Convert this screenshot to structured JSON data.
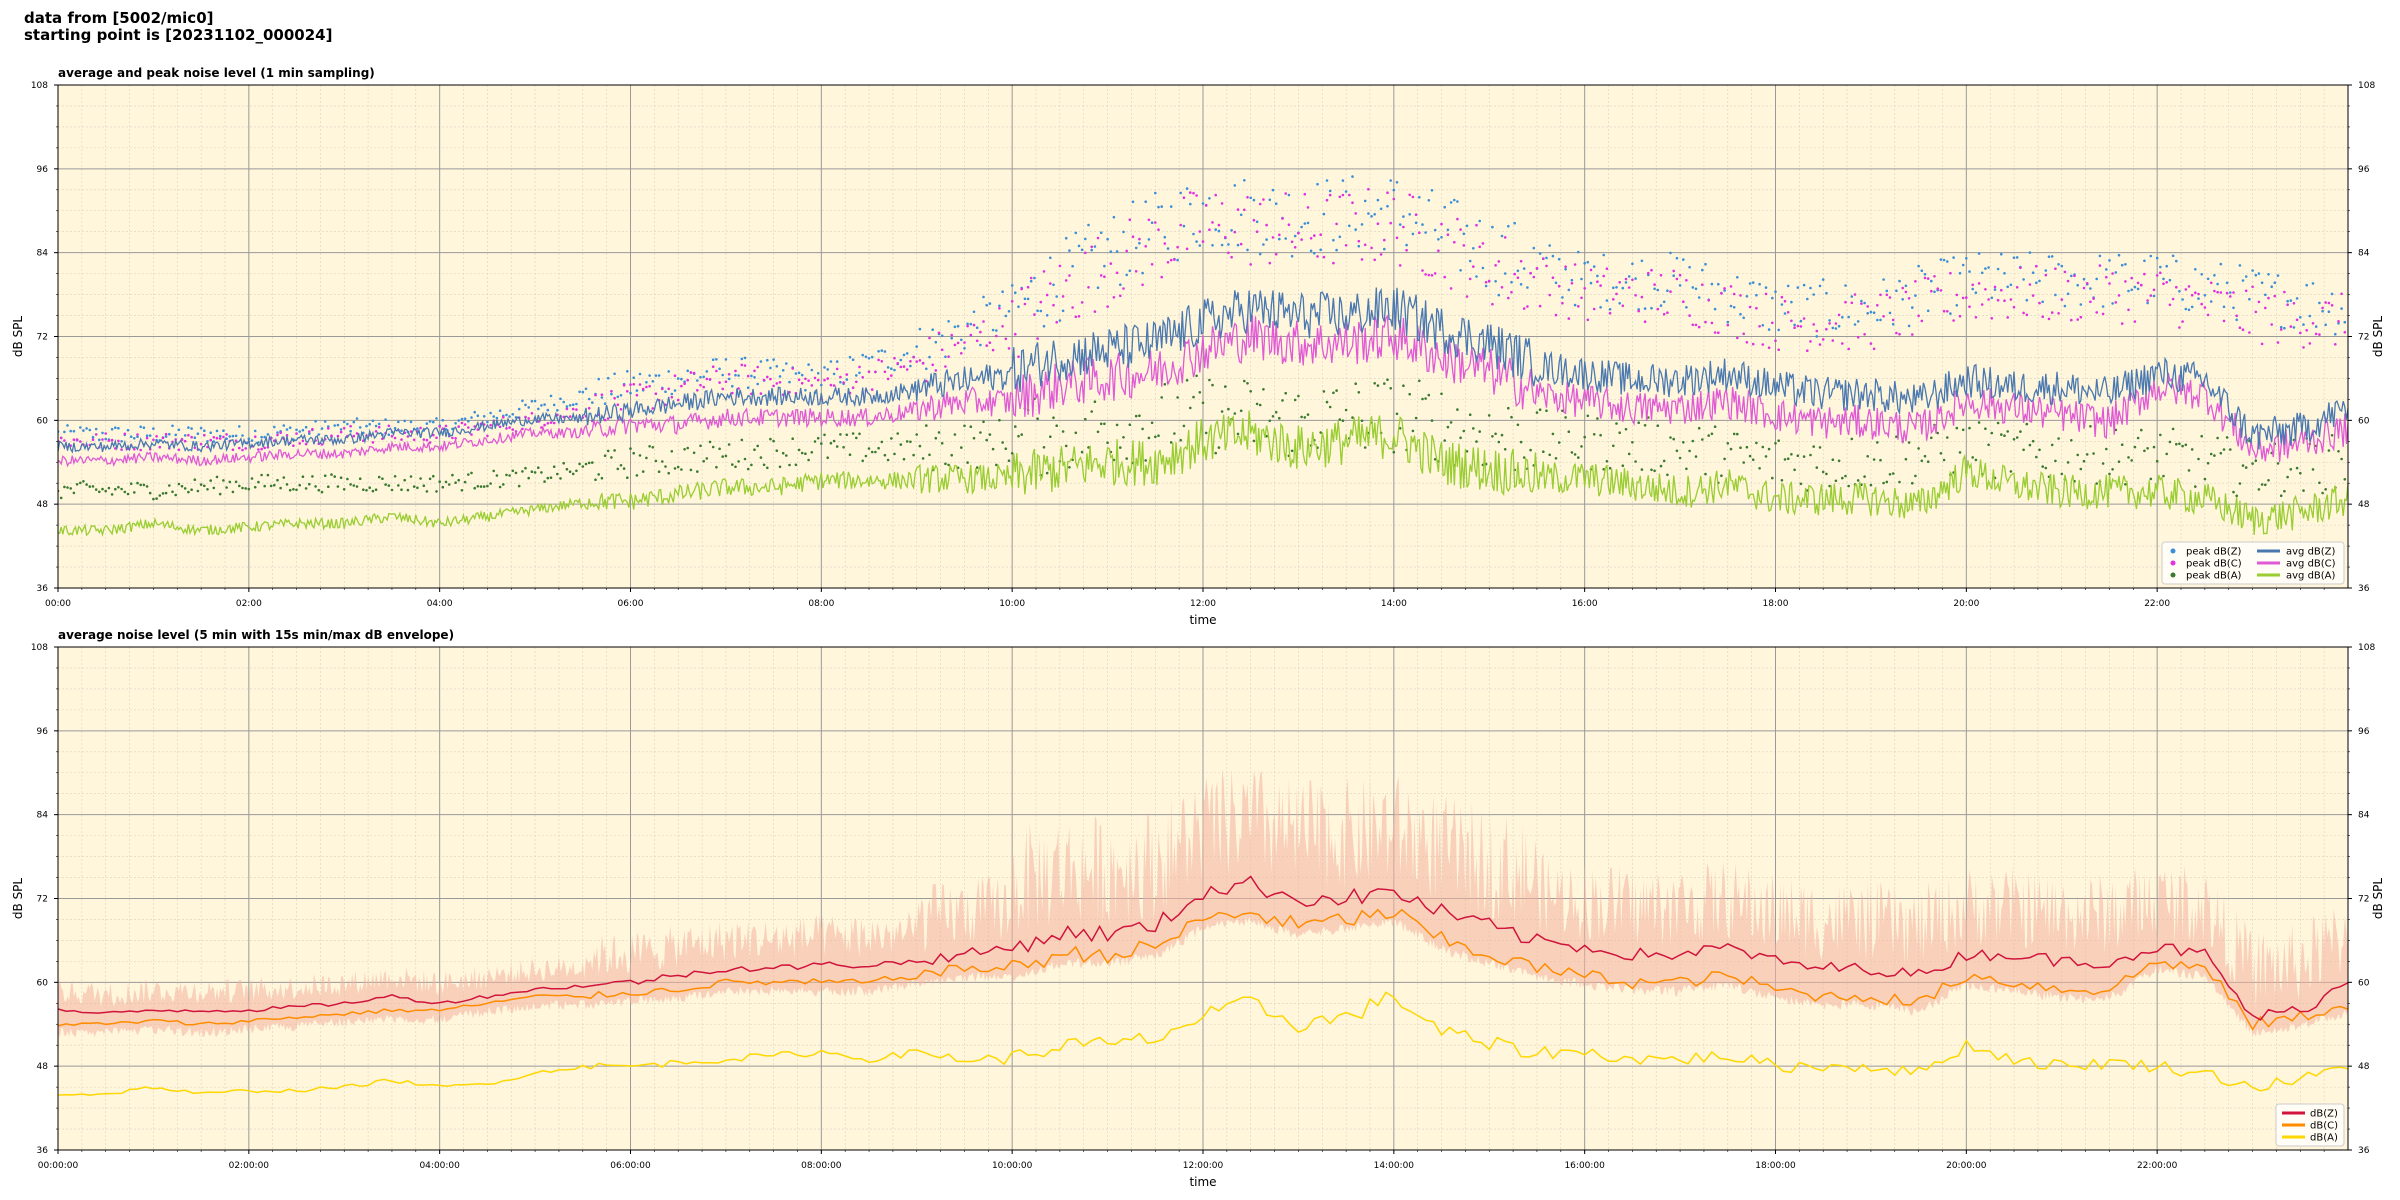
{
  "header": {
    "line1": "data from [5002/mic0]",
    "line2": "starting point is [20231102_000024]"
  },
  "chart_data": [
    {
      "type": "line",
      "title": "average and peak noise level (1 min sampling)",
      "xlabel": "time",
      "ylabel": "dB SPL",
      "x_range_hours": [
        0,
        24
      ],
      "ylim": [
        36,
        108
      ],
      "yticks": [
        "36",
        "48",
        "60",
        "72",
        "84",
        "96",
        "108"
      ],
      "xticks": [
        "00:00",
        "02:00",
        "04:00",
        "06:00",
        "08:00",
        "10:00",
        "12:00",
        "14:00",
        "16:00",
        "18:00",
        "20:00",
        "22:00"
      ],
      "grid": true,
      "legend_position": "lower-right",
      "legend_labels": [
        "peak dB(Z)",
        "peak dB(C)",
        "peak dB(A)",
        "avg dB(Z)",
        "avg dB(C)",
        "avg dB(A)"
      ],
      "colors": {
        "z": "#4a78b0",
        "c": "#e05ad6",
        "a": "#9acd32",
        "peak_z": "#3a8fd8",
        "peak_c": "#e030e0",
        "peak_a": "#3a7a30",
        "background": "#fff6dc"
      },
      "series": [
        {
          "name": "avg dB(Z)",
          "x": [
            0,
            0.5,
            1,
            1.5,
            2,
            2.5,
            3,
            3.5,
            4,
            4.5,
            5,
            5.5,
            6,
            6.5,
            7,
            7.5,
            8,
            8.5,
            9,
            9.5,
            10,
            10.5,
            11,
            11.5,
            12,
            12.5,
            13,
            13.5,
            14,
            14.5,
            15,
            15.5,
            16,
            16.5,
            17,
            17.5,
            18,
            18.5,
            19,
            19.5,
            20,
            20.5,
            21,
            21.5,
            22,
            22.5,
            23,
            23.5,
            24
          ],
          "y": [
            56,
            56,
            56.5,
            56,
            56.5,
            57,
            57,
            58,
            58,
            59,
            60,
            60,
            61,
            62,
            63,
            63,
            63,
            63,
            64,
            65,
            66,
            68,
            69,
            70,
            73,
            75,
            74,
            74,
            75,
            72,
            70,
            67,
            66,
            65,
            65,
            66,
            64,
            63,
            63,
            62,
            65,
            64,
            64,
            63,
            66,
            65,
            57,
            58,
            61
          ]
        },
        {
          "name": "avg dB(C)",
          "x": [
            0,
            0.5,
            1,
            1.5,
            2,
            2.5,
            3,
            3.5,
            4,
            4.5,
            5,
            5.5,
            6,
            6.5,
            7,
            7.5,
            8,
            8.5,
            9,
            9.5,
            10,
            10.5,
            11,
            11.5,
            12,
            12.5,
            13,
            13.5,
            14,
            14.5,
            15,
            15.5,
            16,
            16.5,
            17,
            17.5,
            18,
            18.5,
            19,
            19.5,
            20,
            20.5,
            21,
            21.5,
            22,
            22.5,
            23,
            23.5,
            24
          ],
          "y": [
            54,
            54,
            54.5,
            54,
            54.5,
            55,
            55,
            56,
            56,
            57,
            58,
            58,
            59,
            59,
            60,
            60,
            60,
            60,
            61,
            62,
            62,
            64,
            65,
            66,
            69,
            71,
            70,
            70,
            71,
            68,
            66,
            63,
            62,
            61,
            61,
            62,
            60,
            59,
            59,
            58,
            62,
            61,
            60,
            59,
            64,
            63,
            55,
            56,
            58
          ]
        },
        {
          "name": "avg dB(A)",
          "x": [
            0,
            0.5,
            1,
            1.5,
            2,
            2.5,
            3,
            3.5,
            4,
            4.5,
            5,
            5.5,
            6,
            6.5,
            7,
            7.5,
            8,
            8.5,
            9,
            9.5,
            10,
            10.5,
            11,
            11.5,
            12,
            12.5,
            13,
            13.5,
            14,
            14.5,
            15,
            15.5,
            16,
            16.5,
            17,
            17.5,
            18,
            18.5,
            19,
            19.5,
            20,
            20.5,
            21,
            21.5,
            22,
            22.5,
            23,
            23.5,
            24
          ],
          "y": [
            44,
            44,
            45,
            44,
            44.5,
            45,
            45,
            46,
            45,
            46,
            47,
            48,
            48,
            49,
            50,
            50,
            51,
            51,
            51,
            51,
            51,
            52,
            53,
            53,
            56,
            57,
            55,
            56,
            57,
            53,
            52,
            51,
            51,
            50,
            49,
            50,
            48,
            48,
            48,
            47,
            52,
            50,
            49,
            49,
            49,
            48,
            45,
            46,
            48
          ]
        },
        {
          "name": "peak dB(Z)",
          "x": [
            0,
            1,
            2,
            3,
            4,
            5,
            6,
            7,
            8,
            9,
            10,
            11,
            12,
            13,
            14,
            15,
            16,
            17,
            18,
            19,
            20,
            21,
            22,
            23,
            24
          ],
          "y": [
            58,
            58,
            58,
            59,
            59,
            62,
            65,
            67,
            66,
            70,
            76,
            84,
            90,
            89,
            90,
            84,
            80,
            80,
            76,
            76,
            80,
            80,
            80,
            78,
            76
          ]
        },
        {
          "name": "peak dB(C)",
          "x": [
            0,
            1,
            2,
            3,
            4,
            5,
            6,
            7,
            8,
            9,
            10,
            11,
            12,
            13,
            14,
            15,
            16,
            17,
            18,
            19,
            20,
            21,
            22,
            23,
            24
          ],
          "y": [
            57,
            57,
            57,
            58,
            58,
            60,
            63,
            66,
            65,
            68,
            74,
            82,
            88,
            87,
            88,
            82,
            78,
            78,
            74,
            74,
            78,
            78,
            78,
            75,
            74
          ]
        },
        {
          "name": "peak dB(A)",
          "x": [
            0,
            1,
            2,
            3,
            4,
            5,
            6,
            7,
            8,
            9,
            10,
            11,
            12,
            13,
            14,
            15,
            16,
            17,
            18,
            19,
            20,
            21,
            22,
            23,
            24
          ],
          "y": [
            50,
            50,
            51,
            51,
            51,
            52,
            54,
            55,
            56,
            56,
            57,
            59,
            61,
            60,
            61,
            58,
            57,
            56,
            54,
            54,
            56,
            55,
            55,
            53,
            54
          ]
        }
      ]
    },
    {
      "type": "line",
      "title": "average noise level (5 min with 15s min/max dB envelope)",
      "xlabel": "time",
      "ylabel": "dB SPL",
      "x_range_hours": [
        0,
        24
      ],
      "ylim": [
        36,
        108
      ],
      "yticks": [
        "36",
        "48",
        "60",
        "72",
        "84",
        "96",
        "108"
      ],
      "xticks": [
        "00:00:00",
        "02:00:00",
        "04:00:00",
        "06:00:00",
        "08:00:00",
        "10:00:00",
        "12:00:00",
        "14:00:00",
        "16:00:00",
        "18:00:00",
        "20:00:00",
        "22:00:00"
      ],
      "grid": true,
      "legend_position": "lower-right",
      "legend_labels": [
        "dB(Z)",
        "dB(C)",
        "dB(A)"
      ],
      "colors": {
        "z": "#d0143c",
        "c": "#ff8c00",
        "a": "#ffd700",
        "envelope": "#f4b3a0",
        "background": "#fff6dc"
      },
      "series": [
        {
          "name": "dB(Z)",
          "x": [
            0,
            0.5,
            1,
            1.5,
            2,
            2.5,
            3,
            3.5,
            4,
            4.5,
            5,
            5.5,
            6,
            6.5,
            7,
            7.5,
            8,
            8.5,
            9,
            9.5,
            10,
            10.5,
            11,
            11.5,
            12,
            12.5,
            13,
            13.5,
            14,
            14.5,
            15,
            15.5,
            16,
            16.5,
            17,
            17.5,
            18,
            18.5,
            19,
            19.5,
            20,
            20.5,
            21,
            21.5,
            22,
            22.5,
            23,
            23.5,
            24
          ],
          "y": [
            56,
            55.5,
            56,
            56,
            56,
            56.5,
            57,
            58,
            57,
            58,
            59,
            59.5,
            60,
            61,
            62,
            62,
            62.5,
            62.5,
            63,
            64,
            65,
            67,
            67,
            68,
            73,
            74,
            72,
            72,
            73,
            70,
            68,
            66,
            65,
            64,
            64,
            65,
            63,
            62,
            62,
            61,
            64,
            64,
            63,
            63,
            65,
            64,
            55,
            56,
            60
          ]
        },
        {
          "name": "dB(C)",
          "x": [
            0,
            0.5,
            1,
            1.5,
            2,
            2.5,
            3,
            3.5,
            4,
            4.5,
            5,
            5.5,
            6,
            6.5,
            7,
            7.5,
            8,
            8.5,
            9,
            9.5,
            10,
            10.5,
            11,
            11.5,
            12,
            12.5,
            13,
            13.5,
            14,
            14.5,
            15,
            15.5,
            16,
            16.5,
            17,
            17.5,
            18,
            18.5,
            19,
            19.5,
            20,
            20.5,
            21,
            21.5,
            22,
            22.5,
            23,
            23.5,
            24
          ],
          "y": [
            54,
            54,
            54.5,
            54,
            54.5,
            55,
            55.5,
            56,
            56,
            57,
            58,
            58,
            58.5,
            59,
            60,
            60,
            60,
            60,
            61,
            62,
            62,
            64,
            64,
            65,
            69,
            70,
            68,
            69,
            70,
            66,
            64,
            62,
            61,
            60,
            60,
            61,
            59,
            58,
            58,
            57,
            61,
            60,
            59,
            59,
            63,
            62,
            54,
            55,
            57
          ]
        },
        {
          "name": "dB(A)",
          "x": [
            0,
            0.5,
            1,
            1.5,
            2,
            2.5,
            3,
            3.5,
            4,
            4.5,
            5,
            5.5,
            6,
            6.5,
            7,
            7.5,
            8,
            8.5,
            9,
            9.5,
            10,
            10.5,
            11,
            11.5,
            12,
            12.5,
            13,
            13.5,
            14,
            14.5,
            15,
            15.5,
            16,
            16.5,
            17,
            17.5,
            18,
            18.5,
            19,
            19.5,
            20,
            20.5,
            21,
            21.5,
            22,
            22.5,
            23,
            23.5,
            24
          ],
          "y": [
            44,
            44,
            45,
            44,
            44.5,
            44.5,
            45,
            46,
            45,
            45.5,
            47,
            48,
            48,
            48.5,
            49,
            49.5,
            50,
            49,
            50,
            49,
            49,
            51,
            51,
            52,
            55,
            57,
            54,
            55,
            58,
            53,
            51,
            50,
            50,
            49,
            49,
            49.5,
            48,
            48,
            48,
            47,
            51,
            49,
            48,
            48.5,
            48,
            47,
            45,
            46,
            48
          ]
        }
      ]
    }
  ]
}
